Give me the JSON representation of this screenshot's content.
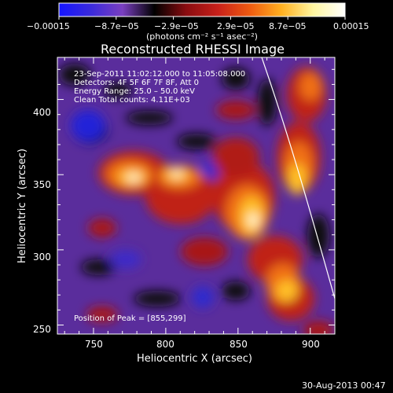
{
  "colorbar": {
    "tick_labels": [
      "−0.00015",
      "−8.7e−05",
      "−2.9e−05",
      "2.9e−05",
      "8.7e−05",
      "0.00015"
    ],
    "units_label": "(photons cm⁻² s⁻¹ asec⁻²)",
    "colors": [
      "#1515ff",
      "#3a2adb",
      "#7a3fc0",
      "#000000",
      "#8a0c10",
      "#c8201a",
      "#ee5a10",
      "#ffb020",
      "#fff6a0",
      "#ffffff"
    ]
  },
  "plot": {
    "title": "Reconstructed RHESSI Image",
    "info_lines": [
      "23‑Sep‑2011 11:02:12.000 to 11:05:08.000",
      "Detectors: 4F 5F 6F 7F 8F, Att 0",
      "Energy Range: 25.0 – 50.0 keV",
      "Clean     Total counts: 4.11E+03"
    ],
    "peak_label": "Position of Peak = [855,299]",
    "xlabel": "Heliocentric X (arcsec)",
    "ylabel": "Heliocentric Y (arcsec)",
    "xlim": [
      725,
      917
    ],
    "ylim": [
      244,
      428
    ],
    "x_ticks": [
      750,
      800,
      850,
      900
    ],
    "y_ticks": [
      250,
      300,
      350,
      400
    ],
    "limb_color": "#ffffff"
  },
  "timestamp": "30‑Aug‑2013 00:47"
}
